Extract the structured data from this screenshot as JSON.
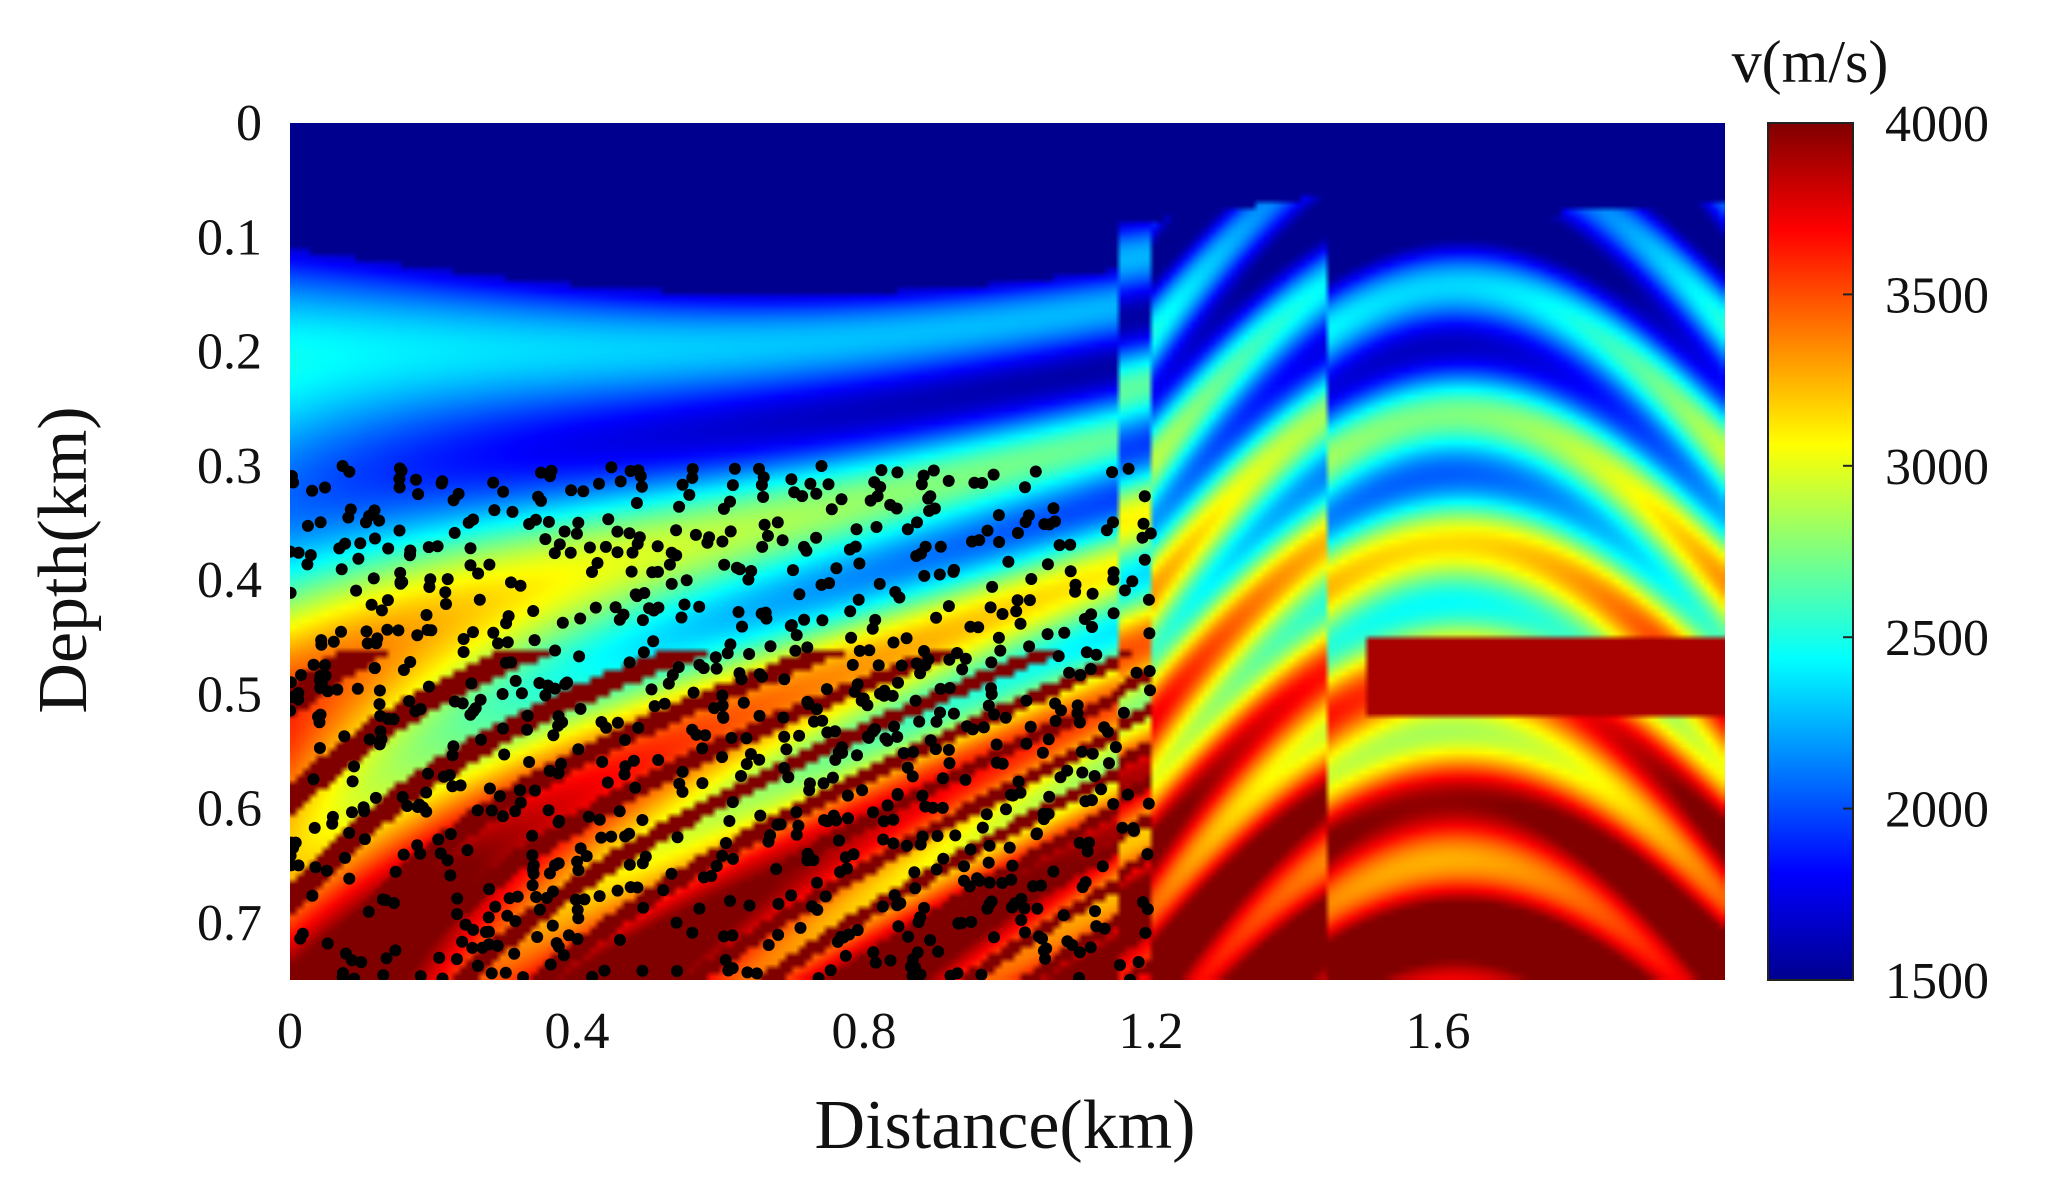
{
  "chart_data": {
    "type": "heatmap",
    "title": "",
    "xlabel": "Distance(km)",
    "ylabel": "Depth(km)",
    "xlim": [
      0,
      2.0
    ],
    "ylim": [
      0,
      0.75
    ],
    "x_ticks": [
      {
        "value": 0,
        "label": "0"
      },
      {
        "value": 0.4,
        "label": "0.4"
      },
      {
        "value": 0.8,
        "label": "0.8"
      },
      {
        "value": 1.2,
        "label": "1.2"
      },
      {
        "value": 1.6,
        "label": "1.6"
      }
    ],
    "y_ticks": [
      {
        "value": 0,
        "label": "0"
      },
      {
        "value": 0.1,
        "label": "0.1"
      },
      {
        "value": 0.2,
        "label": "0.2"
      },
      {
        "value": 0.3,
        "label": "0.3"
      },
      {
        "value": 0.4,
        "label": "0.4"
      },
      {
        "value": 0.5,
        "label": "0.5"
      },
      {
        "value": 0.6,
        "label": "0.6"
      },
      {
        "value": 0.7,
        "label": "0.7"
      }
    ],
    "y_inverted": true,
    "colorbar": {
      "label": "v(m/s)",
      "range": [
        1500,
        4000
      ],
      "ticks": [
        {
          "value": 4000,
          "label": "4000"
        },
        {
          "value": 3500,
          "label": "3500"
        },
        {
          "value": 3000,
          "label": "3000"
        },
        {
          "value": 2500,
          "label": "2500"
        },
        {
          "value": 2000,
          "label": "2000"
        },
        {
          "value": 1500,
          "label": "1500"
        }
      ],
      "colormap": "jet",
      "colormap_stops": [
        "#00008f",
        "#0000ff",
        "#00ffff",
        "#ffff00",
        "#ff0000",
        "#800000"
      ]
    },
    "grid": false,
    "field_description_values_m_per_s": {
      "water_layer": 1500,
      "shallow_sediments": 1900,
      "mid_layers": 2500,
      "deep_layers": 3700,
      "high_velocity_bands": 4000
    },
    "samples_region": {
      "x_range": [
        0,
        1.2
      ],
      "y_range": [
        0.3,
        0.75
      ]
    },
    "marker_color": "#000000"
  }
}
